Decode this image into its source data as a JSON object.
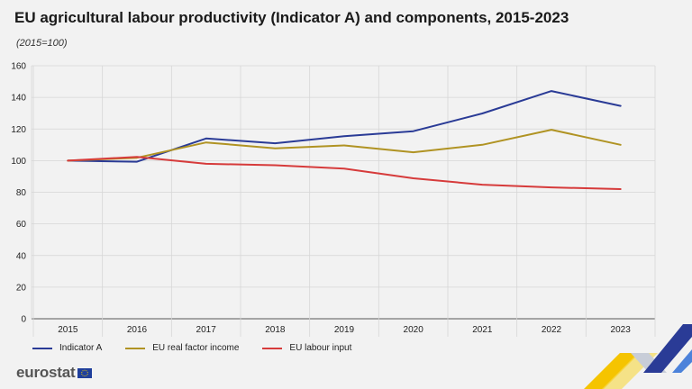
{
  "header": {
    "title": "EU agricultural labour productivity (Indicator A) and components, 2015-2023",
    "subtitle": "(2015=100)"
  },
  "brand": {
    "name": "eurostat",
    "flag_icon": "eu-flag-icon",
    "flag_color": "#1f3f9c"
  },
  "chart_data": {
    "type": "line",
    "categories": [
      "2015",
      "2016",
      "2017",
      "2018",
      "2019",
      "2020",
      "2021",
      "2022",
      "2023"
    ],
    "ylim": [
      0,
      160
    ],
    "yticks": [
      0,
      20,
      40,
      60,
      80,
      100,
      120,
      140,
      160
    ],
    "grid": "y and x",
    "legend_position": "bottom",
    "series": [
      {
        "name": "Indicator A",
        "color": "#2a3b96",
        "values": [
          100,
          99.3,
          114,
          111,
          115.5,
          118.6,
          129.8,
          144,
          134.6
        ]
      },
      {
        "name": "EU real factor income",
        "color": "#b09323",
        "values": [
          100,
          101.8,
          111.5,
          107.8,
          109.6,
          105.3,
          110,
          119.5,
          110
        ]
      },
      {
        "name": "EU labour input",
        "color": "#d63b3b",
        "values": [
          100,
          102.4,
          98,
          97.1,
          95,
          88.8,
          84.8,
          83.1,
          82
        ]
      }
    ]
  }
}
